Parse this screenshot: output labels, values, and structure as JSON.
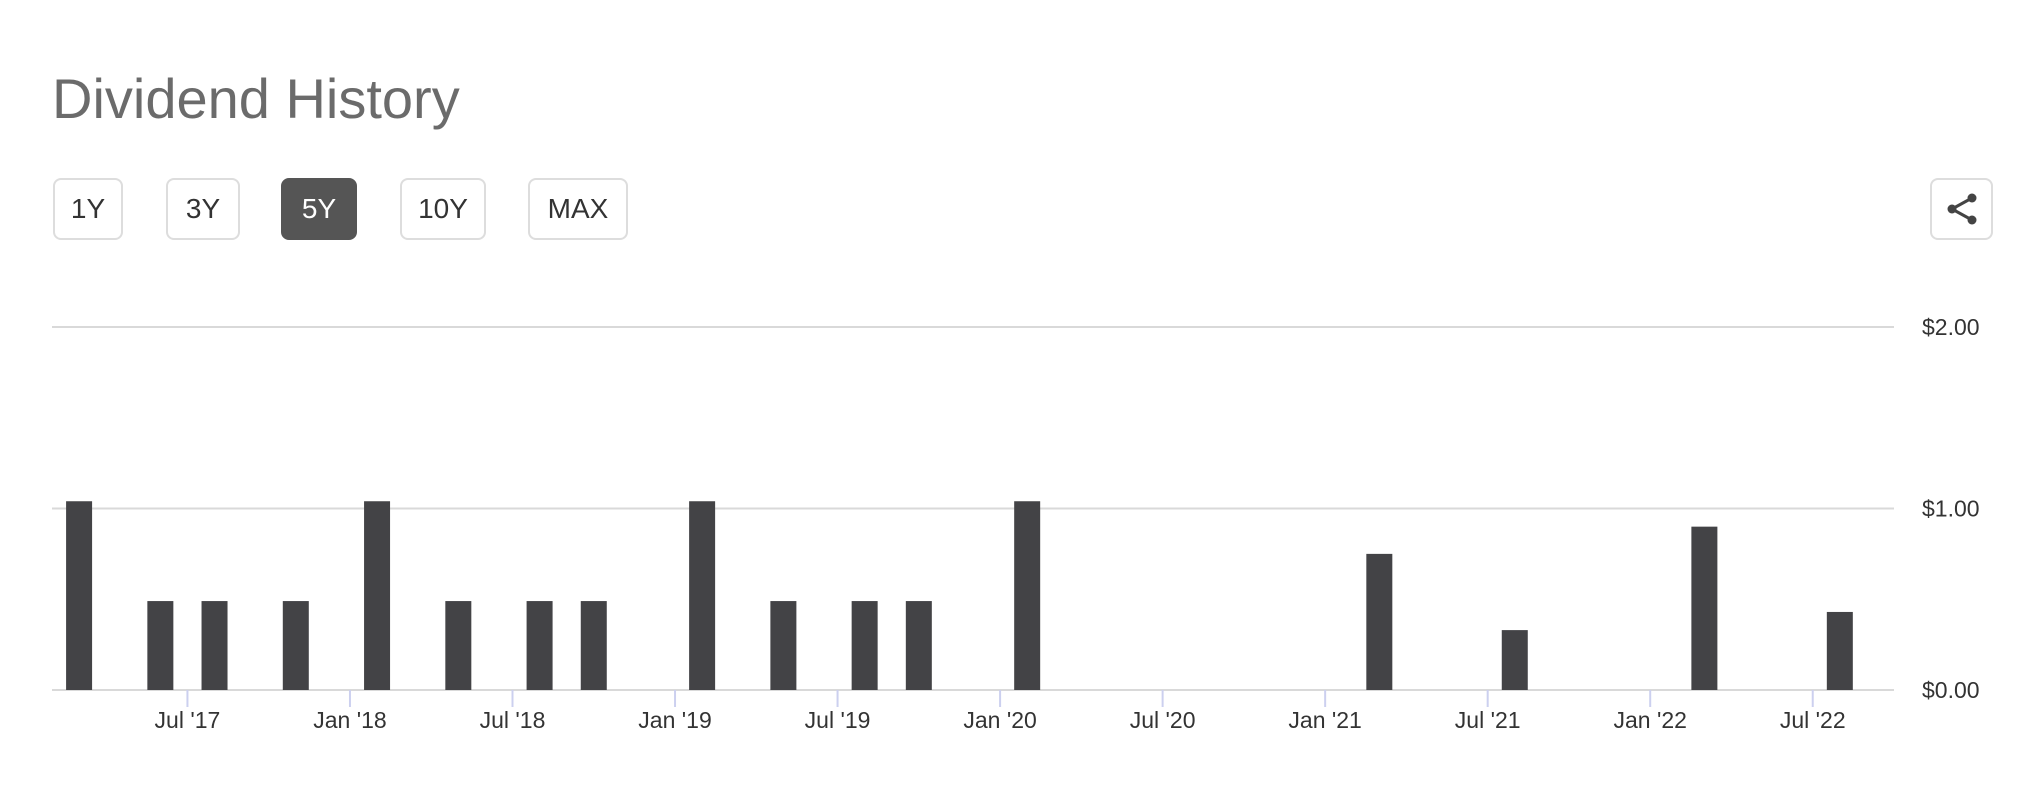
{
  "chart_data": {
    "type": "bar",
    "title": "Dividend History",
    "x": [
      "2017-03",
      "2017-06",
      "2017-08",
      "2017-11",
      "2018-02",
      "2018-05",
      "2018-08",
      "2018-10",
      "2019-02",
      "2019-05",
      "2019-08",
      "2019-10",
      "2020-02",
      "2021-03",
      "2021-08",
      "2022-03",
      "2022-08"
    ],
    "values": [
      1.04,
      0.49,
      0.49,
      0.49,
      1.04,
      0.49,
      0.49,
      0.49,
      1.04,
      0.49,
      0.49,
      0.49,
      1.04,
      0.75,
      0.33,
      0.9,
      0.43
    ],
    "color": "#434346",
    "xlim": [
      "2017-02",
      "2022-10"
    ],
    "xticks": [
      {
        "value": "2017-07",
        "label": "Jul '17"
      },
      {
        "value": "2018-01",
        "label": "Jan '18"
      },
      {
        "value": "2018-07",
        "label": "Jul '18"
      },
      {
        "value": "2019-01",
        "label": "Jan '19"
      },
      {
        "value": "2019-07",
        "label": "Jul '19"
      },
      {
        "value": "2020-01",
        "label": "Jan '20"
      },
      {
        "value": "2020-07",
        "label": "Jul '20"
      },
      {
        "value": "2021-01",
        "label": "Jan '21"
      },
      {
        "value": "2021-07",
        "label": "Jul '21"
      },
      {
        "value": "2022-01",
        "label": "Jan '22"
      },
      {
        "value": "2022-07",
        "label": "Jul '22"
      }
    ],
    "ylim": [
      0,
      2
    ],
    "yticks": [
      {
        "value": 0,
        "label": "$0.00"
      },
      {
        "value": 1,
        "label": "$1.00"
      },
      {
        "value": 2,
        "label": "$2.00"
      }
    ],
    "grid": true
  },
  "range_buttons": {
    "options": [
      "1Y",
      "3Y",
      "5Y",
      "10Y",
      "MAX"
    ],
    "selected": 2
  }
}
